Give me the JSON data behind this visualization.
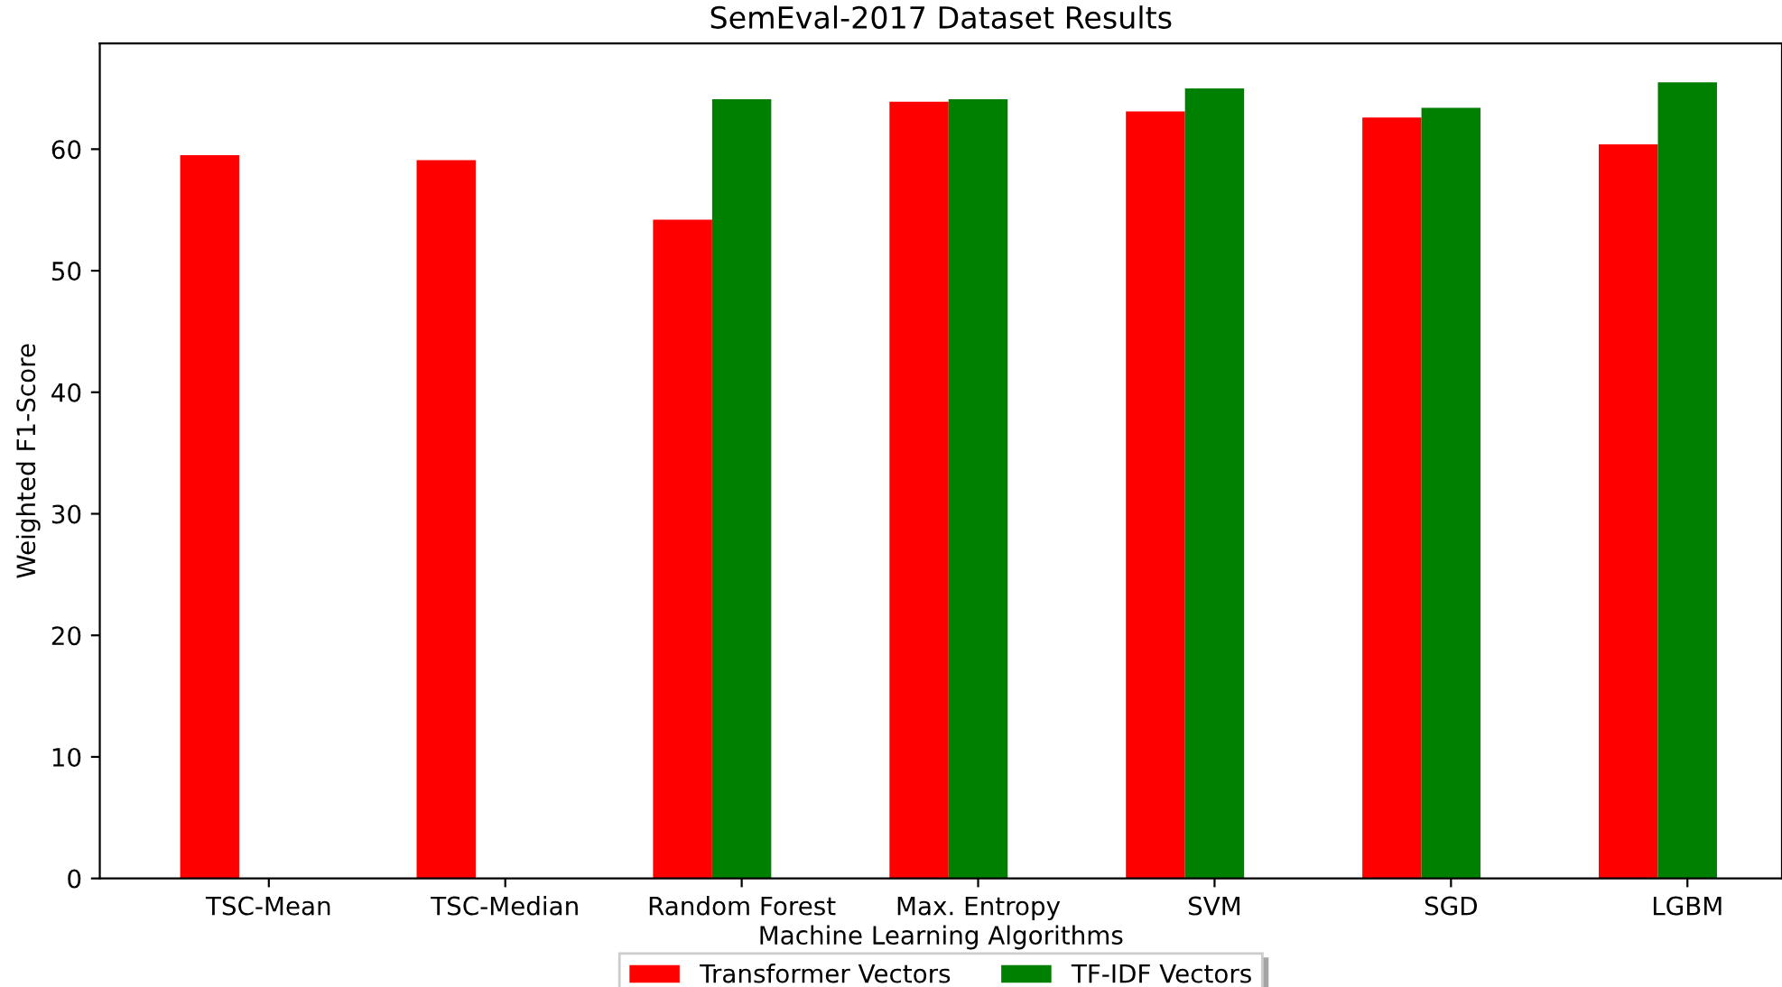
{
  "chart_data": {
    "type": "bar",
    "title": "SemEval-2017 Dataset Results",
    "xlabel": "Machine Learning Algorithms",
    "ylabel": "Weighted F1-Score",
    "categories": [
      "TSC-Mean",
      "TSC-Median",
      "Random Forest",
      "Max. Entropy",
      "SVM",
      "SGD",
      "LGBM"
    ],
    "series": [
      {
        "name": "Transformer Vectors",
        "color": "#ff0000",
        "values": [
          59.5,
          59.1,
          54.2,
          63.9,
          63.1,
          62.6,
          60.4
        ]
      },
      {
        "name": "TF-IDF Vectors",
        "color": "#008000",
        "values": [
          null,
          null,
          64.1,
          64.1,
          65.0,
          63.4,
          65.5
        ]
      }
    ],
    "ylim": [
      0,
      68.7
    ],
    "yticks": [
      0,
      10,
      20,
      30,
      40,
      50,
      60
    ],
    "grid": false,
    "legend": "bottom"
  }
}
